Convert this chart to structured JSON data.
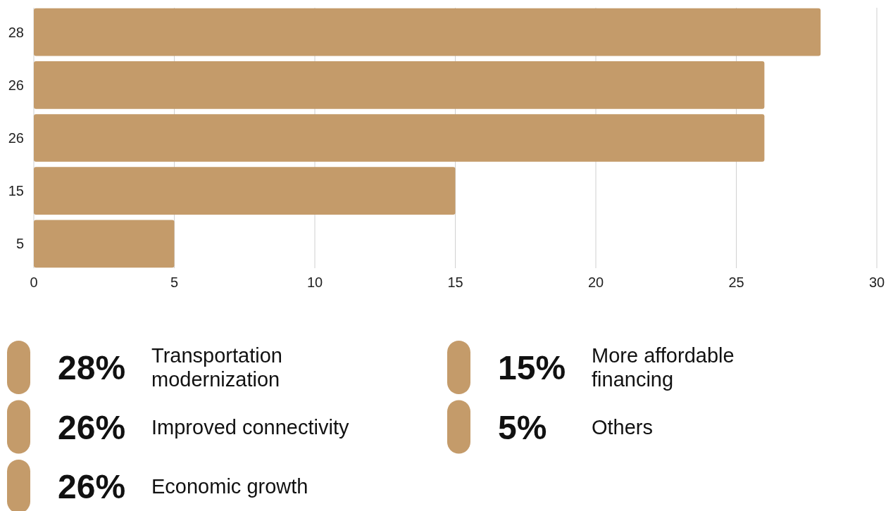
{
  "chart_data": {
    "type": "bar",
    "orientation": "horizontal",
    "categories": [
      "28",
      "26",
      "26",
      "15",
      "5"
    ],
    "values": [
      28,
      26,
      26,
      15,
      5
    ],
    "color": "#c49b6a",
    "xlim": [
      0,
      30
    ],
    "xticks": [
      0,
      5,
      10,
      15,
      20,
      25,
      30
    ],
    "grid": "x",
    "annotations": [
      "28%",
      "Transportation modernization",
      "26%",
      "Improved connectivity",
      "26%",
      "Economic growth",
      "15%",
      "More affordable financing",
      "5%",
      "Others"
    ]
  }
}
